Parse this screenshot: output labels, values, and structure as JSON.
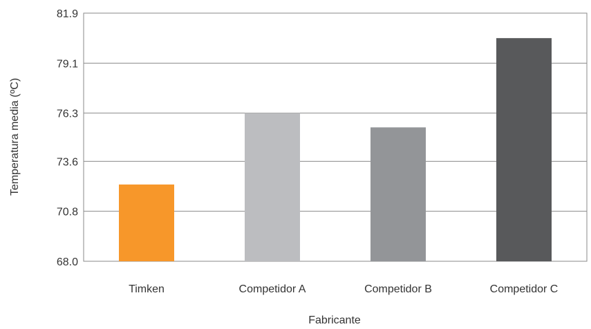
{
  "chart_data": {
    "type": "bar",
    "title": "",
    "xlabel": "Fabricante",
    "ylabel": "Temperatura media (ºC)",
    "categories": [
      "Timken",
      "Competidor A",
      "Competidor B",
      "Competidor C"
    ],
    "values": [
      72.3,
      76.3,
      75.5,
      80.5
    ],
    "colors": [
      "#F7972A",
      "#BCBDC0",
      "#939598",
      "#58595B"
    ],
    "yticks": [
      "68.0",
      "70.8",
      "73.6",
      "76.3",
      "79.1",
      "81.9"
    ],
    "ylim": [
      68.0,
      81.9
    ],
    "grid": true,
    "legend": "none"
  }
}
